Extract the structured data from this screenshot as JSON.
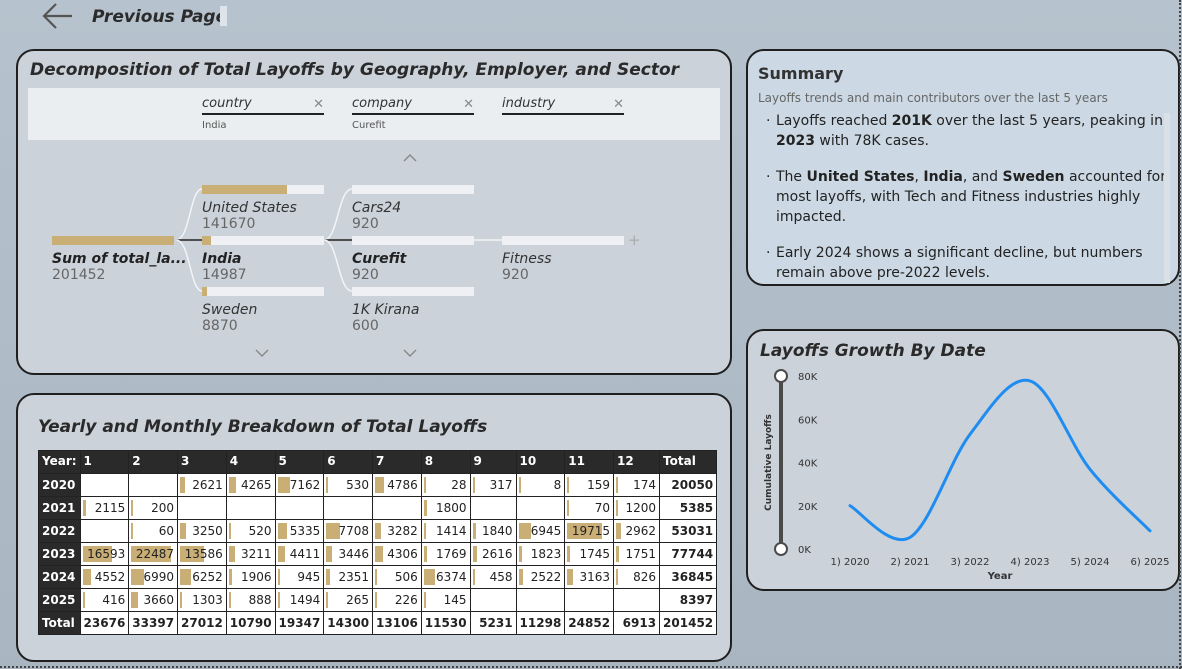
{
  "nav": {
    "back_label": "Previous Page",
    "back_icon": "arrow-left-icon"
  },
  "decomposition": {
    "title": "Decomposition of Total Layoffs by Geography, Employer, and Sector",
    "levels": [
      {
        "name": "country",
        "filter": "India"
      },
      {
        "name": "company",
        "filter": "Curefit"
      },
      {
        "name": "industry",
        "filter": ""
      }
    ],
    "root": {
      "label": "Sum of total_la...",
      "value": "201452",
      "fraction": 1.0
    },
    "country_nodes": [
      {
        "label": "United States",
        "value": "141670",
        "fraction": 0.7
      },
      {
        "label": "India",
        "value": "14987",
        "fraction": 0.07
      },
      {
        "label": "Sweden",
        "value": "8870",
        "fraction": 0.04
      }
    ],
    "company_nodes": [
      {
        "label": "Cars24",
        "value": "920",
        "fraction": 0.0
      },
      {
        "label": "Curefit",
        "value": "920",
        "fraction": 0.0
      },
      {
        "label": "1K Kirana",
        "value": "600",
        "fraction": 0.0
      }
    ],
    "industry_nodes": [
      {
        "label": "Fitness",
        "value": "920",
        "fraction": 0.0
      }
    ]
  },
  "summary": {
    "title": "Summary",
    "subtitle": "Layoffs trends and main contributors over the last 5 years",
    "bullets": [
      [
        {
          "t": "Layoffs reached ",
          "b": false
        },
        {
          "t": "201K",
          "b": true
        },
        {
          "t": " over the last 5 years, peaking in ",
          "b": false
        },
        {
          "t": "2023",
          "b": true
        },
        {
          "t": " with 78K cases.",
          "b": false
        }
      ],
      [
        {
          "t": "The ",
          "b": false
        },
        {
          "t": "United States",
          "b": true
        },
        {
          "t": ", ",
          "b": false
        },
        {
          "t": "India",
          "b": true
        },
        {
          "t": ", and ",
          "b": false
        },
        {
          "t": "Sweden",
          "b": true
        },
        {
          "t": " accounted for most layoffs, with Tech and Fitness industries highly impacted.",
          "b": false
        }
      ],
      [
        {
          "t": "Early 2024 shows a significant decline, but numbers remain above pre-2022 levels.",
          "b": false
        }
      ]
    ]
  },
  "growth_chart": {
    "title": "Layoffs Growth By Date",
    "chart_data": {
      "type": "line",
      "categories": [
        "1) 2020",
        "2) 2021",
        "3) 2022",
        "4) 2023",
        "5) 2024",
        "6) 2025"
      ],
      "series": [
        {
          "values": [
            20050,
            5385,
            53031,
            77744,
            36845,
            8397
          ]
        }
      ],
      "xlabel": "Year",
      "ylabel": "Cumulative Layoffs",
      "ylim": [
        0,
        80000
      ],
      "yticks": [
        "0K",
        "20K",
        "40K",
        "60K",
        "80K"
      ],
      "color": "#1e8cf0"
    }
  },
  "breakdown": {
    "title": "Yearly and Monthly Breakdown of Total Layoffs",
    "header": [
      "Year:",
      "1",
      "2",
      "3",
      "4",
      "5",
      "6",
      "7",
      "8",
      "9",
      "10",
      "11",
      "12",
      "Total"
    ],
    "max_cell": 22487,
    "rows": [
      {
        "year": "2020",
        "cells": [
          "",
          "",
          "2621",
          "4265",
          "7162",
          "530",
          "4786",
          "28",
          "317",
          "8",
          "159",
          "174"
        ],
        "total": "20050"
      },
      {
        "year": "2021",
        "cells": [
          "2115",
          "200",
          "",
          "",
          "",
          "",
          "",
          "1800",
          "",
          "",
          "70",
          "1200"
        ],
        "total": "5385"
      },
      {
        "year": "2022",
        "cells": [
          "",
          "60",
          "3250",
          "520",
          "5335",
          "7708",
          "3282",
          "1414",
          "1840",
          "6945",
          "19715",
          "2962"
        ],
        "total": "53031"
      },
      {
        "year": "2023",
        "cells": [
          "16593",
          "22487",
          "13586",
          "3211",
          "4411",
          "3446",
          "4306",
          "1769",
          "2616",
          "1823",
          "1745",
          "1751"
        ],
        "total": "77744"
      },
      {
        "year": "2024",
        "cells": [
          "4552",
          "6990",
          "6252",
          "1906",
          "945",
          "2351",
          "506",
          "6374",
          "458",
          "2522",
          "3163",
          "826"
        ],
        "total": "36845"
      },
      {
        "year": "2025",
        "cells": [
          "416",
          "3660",
          "1303",
          "888",
          "1494",
          "265",
          "226",
          "145",
          "",
          "",
          "",
          ""
        ],
        "total": "8397"
      }
    ],
    "total_row": {
      "label": "Total",
      "cells": [
        "23676",
        "33397",
        "27012",
        "10790",
        "19347",
        "14300",
        "13106",
        "11530",
        "5231",
        "11298",
        "24852",
        "6913"
      ],
      "total": "201452"
    },
    "bar_color": "#c9ae76"
  }
}
